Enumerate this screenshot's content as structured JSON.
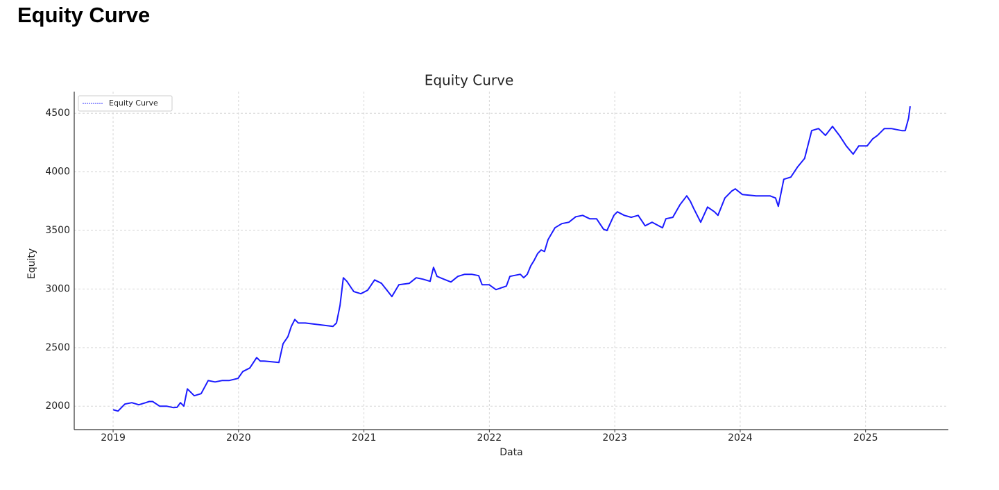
{
  "heading": "Equity Curve",
  "chart_data": {
    "type": "line",
    "title": "Equity Curve",
    "x_label": "Data",
    "y_label": "Equity",
    "x": [
      2019.0,
      2019.039,
      2019.094,
      2019.149,
      2019.205,
      2019.26,
      2019.288,
      2019.315,
      2019.371,
      2019.426,
      2019.481,
      2019.509,
      2019.537,
      2019.564,
      2019.592,
      2019.647,
      2019.702,
      2019.758,
      2019.813,
      2019.868,
      2019.924,
      2019.996,
      2020.034,
      2020.09,
      2020.145,
      2020.173,
      2020.2,
      2020.322,
      2020.355,
      2020.394,
      2020.421,
      2020.449,
      2020.477,
      2020.532,
      2020.753,
      2020.781,
      2020.809,
      2020.836,
      2020.864,
      2020.919,
      2020.975,
      2021.03,
      2021.085,
      2021.14,
      2021.223,
      2021.279,
      2021.362,
      2021.417,
      2021.472,
      2021.528,
      2021.555,
      2021.583,
      2021.638,
      2021.694,
      2021.749,
      2021.804,
      2021.859,
      2021.915,
      2021.942,
      2021.998,
      2022.053,
      2022.136,
      2022.164,
      2022.247,
      2022.274,
      2022.302,
      2022.33,
      2022.357,
      2022.385,
      2022.413,
      2022.44,
      2022.468,
      2022.523,
      2022.578,
      2022.634,
      2022.689,
      2022.744,
      2022.8,
      2022.855,
      2022.91,
      2022.938,
      2022.993,
      2023.021,
      2023.076,
      2023.132,
      2023.187,
      2023.242,
      2023.298,
      2023.381,
      2023.408,
      2023.463,
      2023.519,
      2023.574,
      2023.602,
      2023.629,
      2023.685,
      2023.74,
      2023.795,
      2023.823,
      2023.878,
      2023.934,
      2023.961,
      2024.017,
      2024.127,
      2024.238,
      2024.282,
      2024.304,
      2024.348,
      2024.404,
      2024.459,
      2024.514,
      2024.57,
      2024.625,
      2024.68,
      2024.736,
      2024.791,
      2024.846,
      2024.901,
      2024.946,
      2025.012,
      2025.056,
      2025.095,
      2025.15,
      2025.205,
      2025.288,
      2025.316,
      2025.343,
      2025.355
    ],
    "series": [
      {
        "name": "Equity Curve",
        "color": "#1a1aff",
        "values": [
          1970,
          1958,
          2018,
          2030,
          2012,
          2030,
          2040,
          2040,
          2000,
          2000,
          1988,
          1990,
          2030,
          2000,
          2148,
          2089,
          2107,
          2219,
          2207,
          2219,
          2219,
          2237,
          2296,
          2326,
          2415,
          2385,
          2385,
          2373,
          2533,
          2593,
          2681,
          2740,
          2710,
          2710,
          2681,
          2710,
          2859,
          3096,
          3066,
          2978,
          2960,
          2990,
          3078,
          3049,
          2936,
          3037,
          3049,
          3096,
          3084,
          3066,
          3185,
          3108,
          3084,
          3060,
          3108,
          3126,
          3126,
          3114,
          3037,
          3037,
          2995,
          3025,
          3108,
          3126,
          3096,
          3126,
          3197,
          3244,
          3303,
          3333,
          3320,
          3422,
          3523,
          3558,
          3570,
          3617,
          3629,
          3600,
          3600,
          3511,
          3499,
          3629,
          3659,
          3629,
          3612,
          3629,
          3540,
          3570,
          3523,
          3600,
          3612,
          3718,
          3795,
          3750,
          3689,
          3570,
          3700,
          3659,
          3629,
          3777,
          3837,
          3855,
          3807,
          3795,
          3795,
          3777,
          3706,
          3937,
          3955,
          4044,
          4115,
          4352,
          4370,
          4311,
          4388,
          4311,
          4222,
          4151,
          4222,
          4222,
          4281,
          4311,
          4370,
          4370,
          4352,
          4352,
          4459,
          4560
        ]
      }
    ],
    "xlim": [
      2018.69,
      2025.66
    ],
    "ylim": [
      1800,
      4685
    ],
    "xticks": [
      2019,
      2020,
      2021,
      2022,
      2023,
      2024,
      2025
    ],
    "yticks": [
      2000,
      2500,
      3000,
      3500,
      4000,
      4500
    ],
    "grid": true,
    "legend": "upper-left"
  }
}
